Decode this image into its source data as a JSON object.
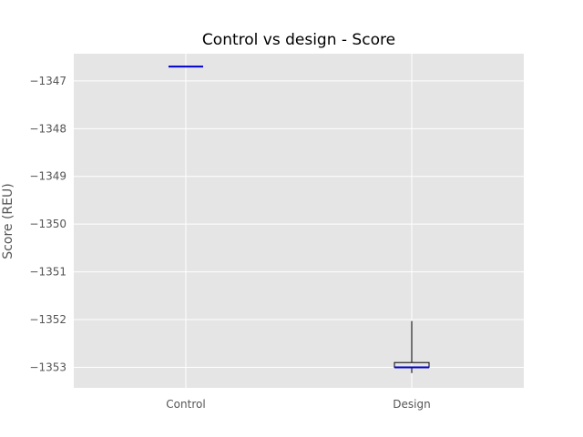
{
  "chart_data": {
    "type": "box",
    "title": "Control vs design - Score",
    "xlabel": "",
    "ylabel": "Score (REU)",
    "categories": [
      "Control",
      "Design"
    ],
    "boxes": [
      {
        "name": "Control",
        "whisker_low": -1346.7,
        "q1": -1346.7,
        "median": -1346.7,
        "q3": -1346.7,
        "whisker_high": -1346.7
      },
      {
        "name": "Design",
        "whisker_low": -1353.12,
        "q1": -1353.0,
        "median": -1353.0,
        "q3": -1352.9,
        "whisker_high": -1352.03
      }
    ],
    "ylim": [
      -1353.43,
      -1346.43
    ],
    "yticks": [
      -1353,
      -1352,
      -1351,
      -1350,
      -1349,
      -1348,
      -1347
    ],
    "ytick_labels": [
      "−1353",
      "−1352",
      "−1351",
      "−1350",
      "−1349",
      "−1348",
      "−1347"
    ],
    "grid": true,
    "colors": {
      "background": "#e5e5e5",
      "grid": "#ffffff",
      "median": "#0000cc",
      "box": "#000000"
    }
  }
}
